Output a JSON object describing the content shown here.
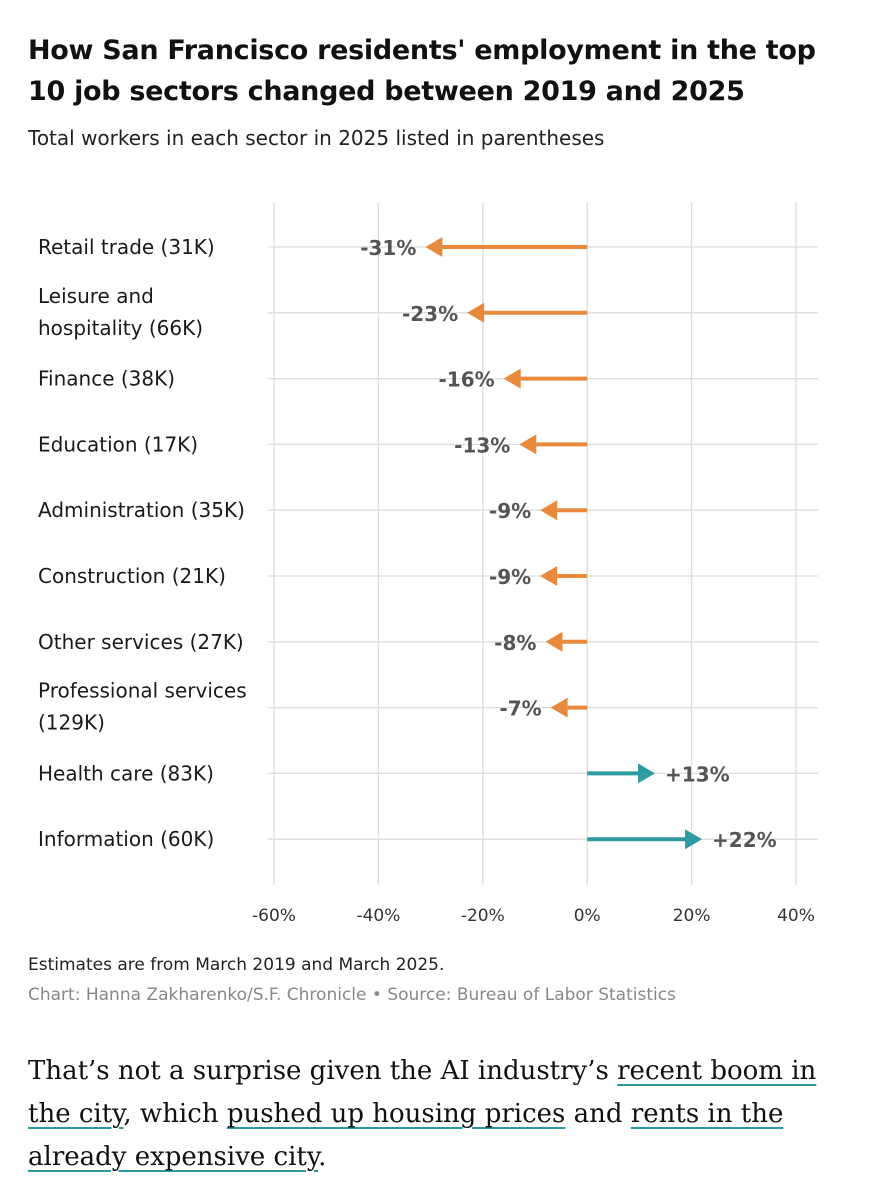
{
  "chart_data": {
    "type": "bar",
    "title": "How San Francisco residents' employment in the top 10 job sectors changed between 2019 and 2025",
    "subtitle": "Total workers in each sector in 2025 listed in parentheses",
    "categories": [
      [
        "Retail trade (31K)"
      ],
      [
        "Leisure and",
        "hospitality (66K)"
      ],
      [
        "Finance (38K)"
      ],
      [
        "Education (17K)"
      ],
      [
        "Administration (35K)"
      ],
      [
        "Construction (21K)"
      ],
      [
        "Other services (27K)"
      ],
      [
        "Professional services",
        "(129K)"
      ],
      [
        "Health care (83K)"
      ],
      [
        "Information (60K)"
      ]
    ],
    "values": [
      -31,
      -23,
      -16,
      -13,
      -9,
      -9,
      -8,
      -7,
      13,
      22
    ],
    "value_labels": [
      "-31%",
      "-23%",
      "-16%",
      "-13%",
      "-9%",
      "-9%",
      "-8%",
      "-7%",
      "+13%",
      "+22%"
    ],
    "xlim": [
      -60,
      40
    ],
    "xticks": [
      -60,
      -40,
      -20,
      0,
      20,
      40
    ],
    "xtick_labels": [
      "-60%",
      "-40%",
      "-20%",
      "0%",
      "20%",
      "40%"
    ],
    "grid": true,
    "colors": {
      "negative": "#e8893c",
      "positive": "#2e9aa2",
      "grid": "#dddddd"
    }
  },
  "footnote": "Estimates are from March 2019 and March 2025.",
  "credit": "Chart: Hanna Zakharenko/S.F. Chronicle • Source: Bureau of Labor Statistics",
  "article": {
    "t1": "That’s not a surprise given the AI industry’s ",
    "link1": "recent boom in the city",
    "t2": ", which ",
    "link2": "pushed up housing prices",
    "t3": " and ",
    "link3": "rents in the already expensive city",
    "t4": "."
  }
}
